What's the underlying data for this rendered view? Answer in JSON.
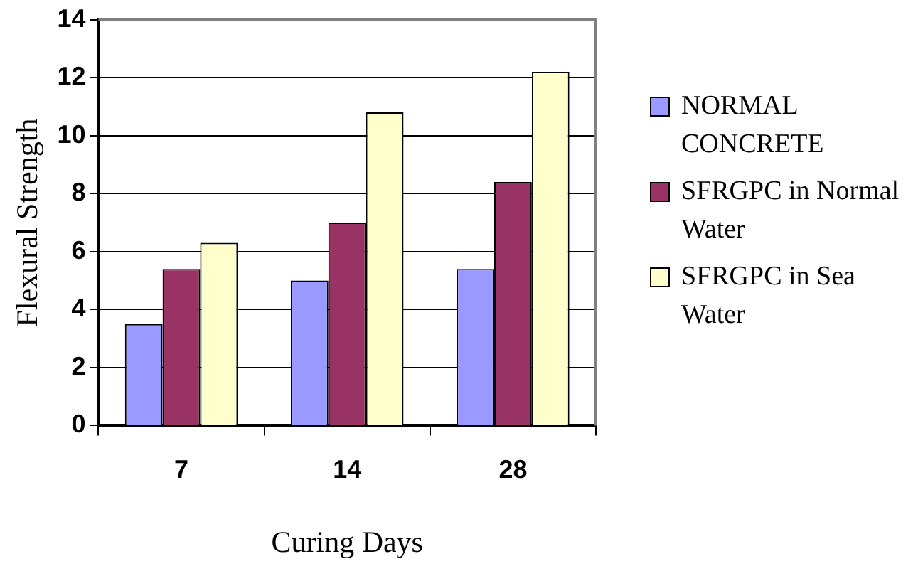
{
  "chart_data": {
    "type": "bar",
    "xlabel": "Curing Days",
    "ylabel": "Flexural Strength",
    "categories": [
      "7",
      "14",
      "28"
    ],
    "series": [
      {
        "name": "NORMAL CONCRETE",
        "color": "#9999ff",
        "values": [
          3.5,
          5.0,
          5.4
        ]
      },
      {
        "name": "SFRGPC in Normal Water",
        "color": "#993366",
        "values": [
          5.4,
          7.0,
          8.4
        ]
      },
      {
        "name": "SFRGPC in Sea Water",
        "color": "#ffffcc",
        "values": [
          6.3,
          10.8,
          12.2
        ]
      }
    ],
    "ylim": [
      0,
      14
    ],
    "yticks": [
      0,
      2,
      4,
      6,
      8,
      10,
      12,
      14
    ],
    "grid": "y",
    "legend": "right"
  }
}
